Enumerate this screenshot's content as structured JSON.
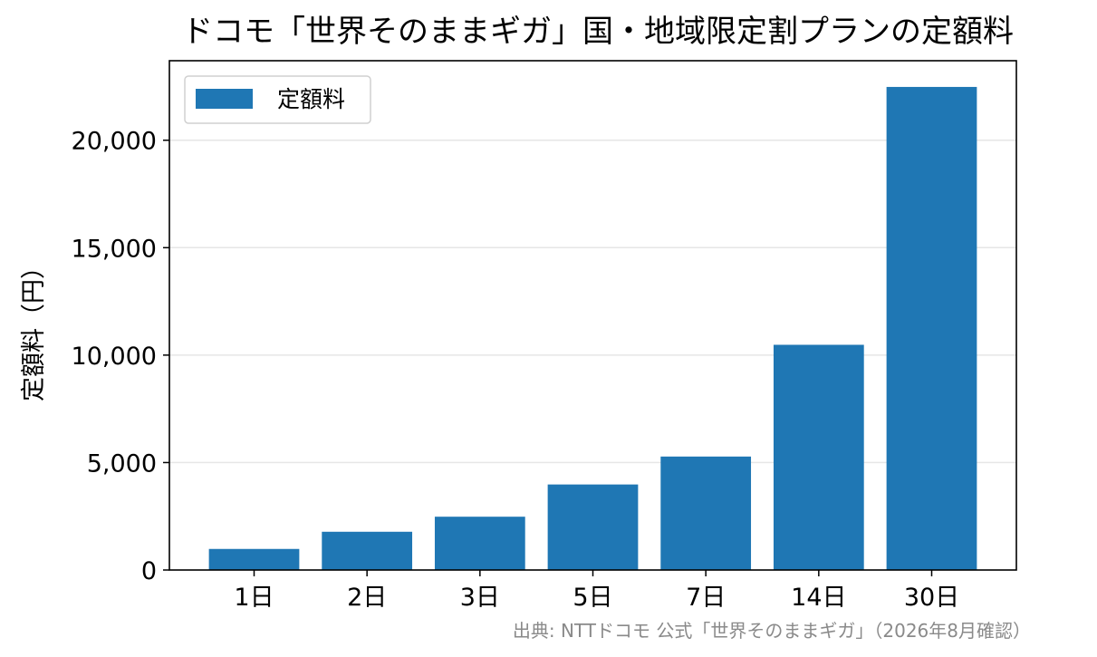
{
  "chart_data": {
    "type": "bar",
    "title": "ドコモ「世界そのままギガ」国・地域限定割プランの定額料",
    "xlabel": "",
    "ylabel": "定額料（円）",
    "categories": [
      "1日",
      "2日",
      "3日",
      "5日",
      "7日",
      "14日",
      "30日"
    ],
    "series": [
      {
        "name": "定額料",
        "values": [
          980,
          1780,
          2480,
          3980,
          5280,
          10480,
          22480
        ]
      }
    ],
    "ylim": [
      0,
      23700
    ],
    "yticks": [
      0,
      5000,
      10000,
      15000,
      20000
    ],
    "ytick_labels": [
      "0",
      "5,000",
      "10,000",
      "15,000",
      "20,000"
    ],
    "grid": "y",
    "legend": "top-left",
    "bar_color": "#1f77b4",
    "source": "出典: NTTドコモ 公式「世界そのままギガ」（2026年8月確認）"
  }
}
